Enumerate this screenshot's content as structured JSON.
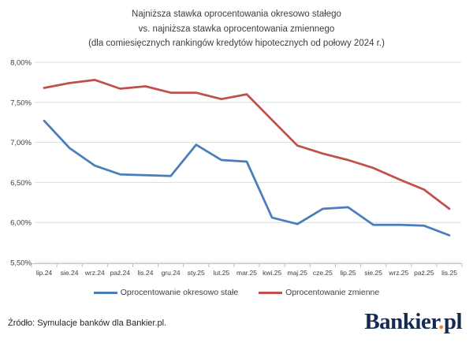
{
  "title": {
    "line1": "Najniższa stawka oprocentowania okresowo stałego",
    "line2": "vs. najniższa stawka oprocentowania zmiennego",
    "line3": "(dla comiesięcznych rankingów kredytów hipotecznych od połowy 2024 r.)"
  },
  "chart_data": {
    "type": "line",
    "categories": [
      "lip.24",
      "sie.24",
      "wrz.24",
      "paź.24",
      "lis.24",
      "gru.24",
      "sty.25",
      "lut.25",
      "mar.25",
      "kwi.25",
      "maj.25",
      "cze.25",
      "lip.25",
      "sie.25",
      "wrz.25",
      "paź.25",
      "lis.25"
    ],
    "series": [
      {
        "name": "Oprocentowanie okresowo stałe",
        "color": "#4A7EBB",
        "values": [
          7.27,
          6.93,
          6.71,
          6.6,
          6.59,
          6.58,
          6.97,
          6.78,
          6.76,
          6.06,
          5.98,
          6.17,
          6.19,
          5.97,
          5.97,
          5.96,
          5.84
        ]
      },
      {
        "name": "Oprocentowanie zmienne",
        "color": "#C0504D",
        "values": [
          7.68,
          7.74,
          7.78,
          7.67,
          7.7,
          7.62,
          7.62,
          7.54,
          7.6,
          7.28,
          6.96,
          6.86,
          6.78,
          6.68,
          6.54,
          6.41,
          6.17
        ]
      }
    ],
    "ylim": [
      5.5,
      8.0
    ],
    "ytick_step": 0.5,
    "ytick_labels": [
      "8,00%",
      "7,50%",
      "7,00%",
      "6,50%",
      "6,00%",
      "5,50%"
    ],
    "grid": true,
    "grid_color": "#DCDCDC",
    "axis_color": "#BFBFBF",
    "text_color": "#404040",
    "legend_position": "bottom",
    "xlabel": "",
    "ylabel": ""
  },
  "footer": {
    "source": "Źródło: Symulacje banków dla Bankier.pl."
  },
  "logo": {
    "part1": "Bankier",
    "dot": ".",
    "part2": "pl",
    "color": "#152A4E",
    "dot_color": "#F5821F"
  }
}
